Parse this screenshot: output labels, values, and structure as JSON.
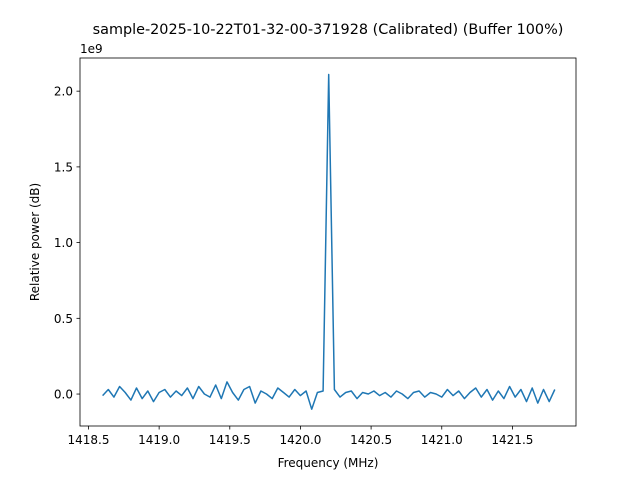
{
  "chart_data": {
    "type": "line",
    "title": "sample-2025-10-22T01-32-00-371928 (Calibrated) (Buffer 100%)",
    "xlabel": "Frequency (MHz)",
    "ylabel": "Relative power (dB)",
    "y_multiplier_label": "1e9",
    "xlim": [
      1418.44,
      1421.95
    ],
    "ylim": [
      -0.211,
      2.219
    ],
    "x_ticks": [
      1418.5,
      1419.0,
      1419.5,
      1420.0,
      1420.5,
      1421.0,
      1421.5
    ],
    "x_tick_labels": [
      "1418.5",
      "1419.0",
      "1419.5",
      "1420.0",
      "1420.5",
      "1421.0",
      "1421.5"
    ],
    "y_ticks": [
      0.0,
      0.5,
      1.0,
      1.5,
      2.0
    ],
    "y_tick_labels": [
      "0.0",
      "0.5",
      "1.0",
      "1.5",
      "2.0"
    ],
    "grid": false,
    "color": "#1f77b4",
    "x_start": 1418.6,
    "x_step": 0.04,
    "values_e9": [
      -0.01,
      0.03,
      -0.02,
      0.05,
      0.01,
      -0.04,
      0.04,
      -0.03,
      0.02,
      -0.05,
      0.01,
      0.03,
      -0.02,
      0.02,
      -0.01,
      0.04,
      -0.03,
      0.05,
      0.0,
      -0.02,
      0.06,
      -0.03,
      0.08,
      0.01,
      -0.04,
      0.03,
      0.05,
      -0.06,
      0.02,
      0.0,
      -0.03,
      0.04,
      0.01,
      -0.02,
      0.03,
      -0.01,
      0.02,
      -0.1,
      0.01,
      0.02,
      2.11,
      0.03,
      -0.02,
      0.01,
      0.02,
      -0.03,
      0.01,
      0.0,
      0.02,
      -0.01,
      0.01,
      -0.02,
      0.02,
      0.0,
      -0.03,
      0.01,
      0.02,
      -0.02,
      0.01,
      0.0,
      -0.02,
      0.03,
      -0.01,
      0.02,
      -0.03,
      0.01,
      0.04,
      -0.02,
      0.03,
      -0.04,
      0.02,
      -0.03,
      0.05,
      -0.02,
      0.03,
      -0.05,
      0.04,
      -0.06,
      0.03,
      -0.05,
      0.03
    ]
  }
}
